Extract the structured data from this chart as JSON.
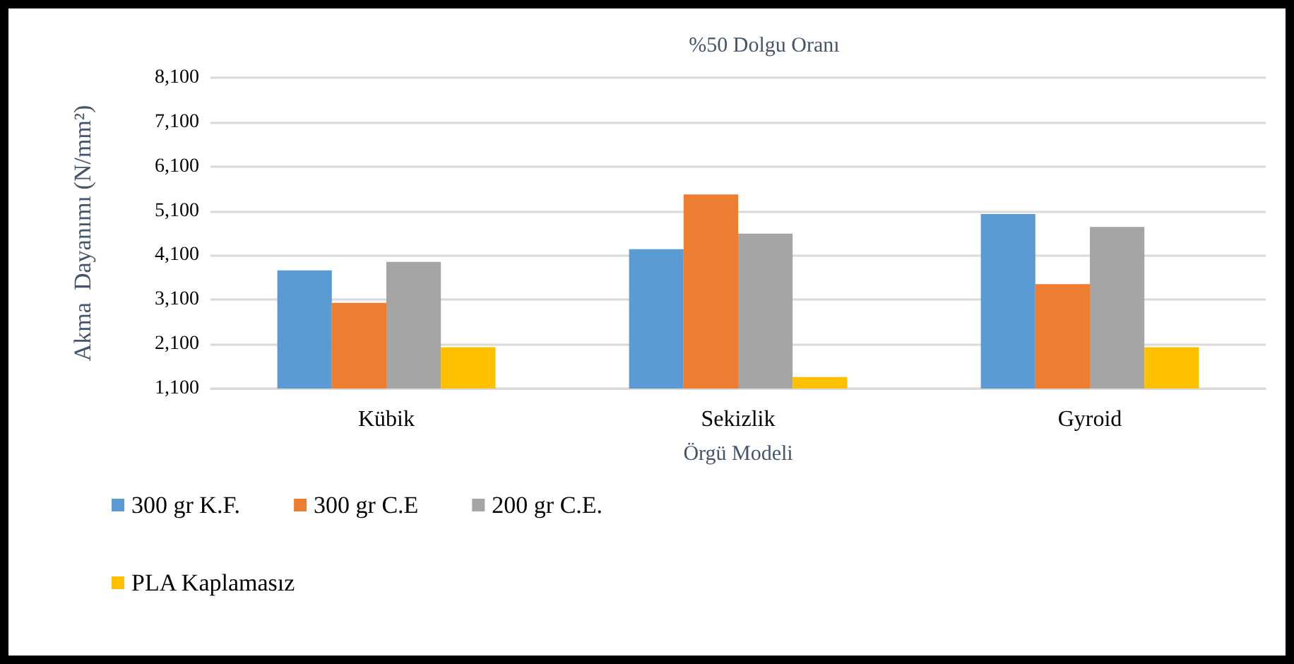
{
  "chart_data": {
    "type": "bar",
    "title": "%50 Dolgu Oranı",
    "xlabel": "Örgü Modeli",
    "ylabel": "Akma  Dayanımı (N/mm²)",
    "categories": [
      "Kübik",
      "Sekizlik",
      "Gyroid"
    ],
    "series": [
      {
        "name": "300 gr K.F.",
        "color": "#5b9bd5",
        "values": [
          3760,
          4240,
          5030
        ]
      },
      {
        "name": "300 gr C.E",
        "color": "#ed7d31",
        "values": [
          3030,
          5470,
          3450
        ]
      },
      {
        "name": "200 gr C.E.",
        "color": "#a5a5a5",
        "values": [
          3950,
          4590,
          4740
        ]
      },
      {
        "name": "PLA Kaplamasız",
        "color": "#ffc000",
        "values": [
          2030,
          1360,
          2030
        ]
      }
    ],
    "ylim": [
      1100,
      8100
    ],
    "yticks": [
      {
        "value": 1100,
        "label": "1,100"
      },
      {
        "value": 2100,
        "label": "2,100"
      },
      {
        "value": 3100,
        "label": "3,100"
      },
      {
        "value": 4100,
        "label": "4,100"
      },
      {
        "value": 5100,
        "label": "5,100"
      },
      {
        "value": 6100,
        "label": "6,100"
      },
      {
        "value": 7100,
        "label": "7,100"
      },
      {
        "value": 8100,
        "label": "8,100"
      }
    ],
    "grid": "y",
    "legend": "bottom left"
  }
}
